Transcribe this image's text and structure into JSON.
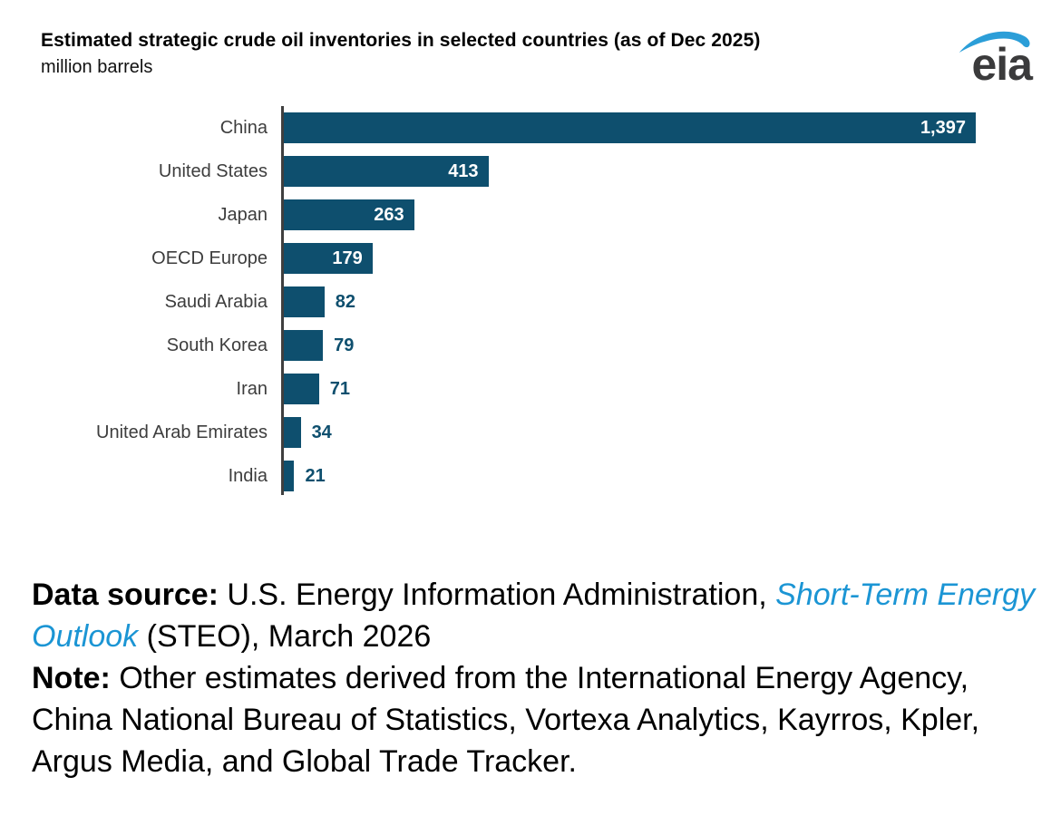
{
  "header": {
    "title": "Estimated strategic crude oil inventories in selected countries (as of Dec 2025)",
    "unit": "million barrels",
    "logo_text": "eia"
  },
  "colors": {
    "bar": "#0e4f6e",
    "axis": "#3f3f3f",
    "value_outside": "#0e4f6e",
    "link_blue": "#1b95d4",
    "logo_blue": "#2b9ed8",
    "logo_text": "#3b3b3c"
  },
  "chart_data": {
    "type": "bar",
    "orientation": "horizontal",
    "title": "Estimated strategic crude oil inventories in selected countries (as of Dec 2025)",
    "xlabel": "",
    "ylabel": "",
    "unit": "million barrels",
    "categories": [
      "China",
      "United States",
      "Japan",
      "OECD Europe",
      "Saudi Arabia",
      "South Korea",
      "Iran",
      "United Arab Emirates",
      "India"
    ],
    "values": [
      1397,
      413,
      263,
      179,
      82,
      79,
      71,
      34,
      21
    ],
    "value_labels": [
      "1,397",
      "413",
      "263",
      "179",
      "82",
      "79",
      "71",
      "34",
      "21"
    ],
    "label_inside": [
      true,
      true,
      true,
      true,
      false,
      false,
      false,
      false,
      false
    ],
    "xlim": [
      0,
      1397
    ],
    "grid": false,
    "legend": false
  },
  "footer": {
    "source_label": "Data source: ",
    "source_text": "U.S. Energy Information Administration, ",
    "source_link": "Short-Term Energy Outlook",
    "source_suffix": " (STEO), March 2026",
    "note_label": "Note: ",
    "note_text": "Other estimates derived from the International Energy Agency, China National Bureau of Statistics, Vortexa Analytics, Kayrros, Kpler, Argus Media, and Global Trade Tracker."
  }
}
